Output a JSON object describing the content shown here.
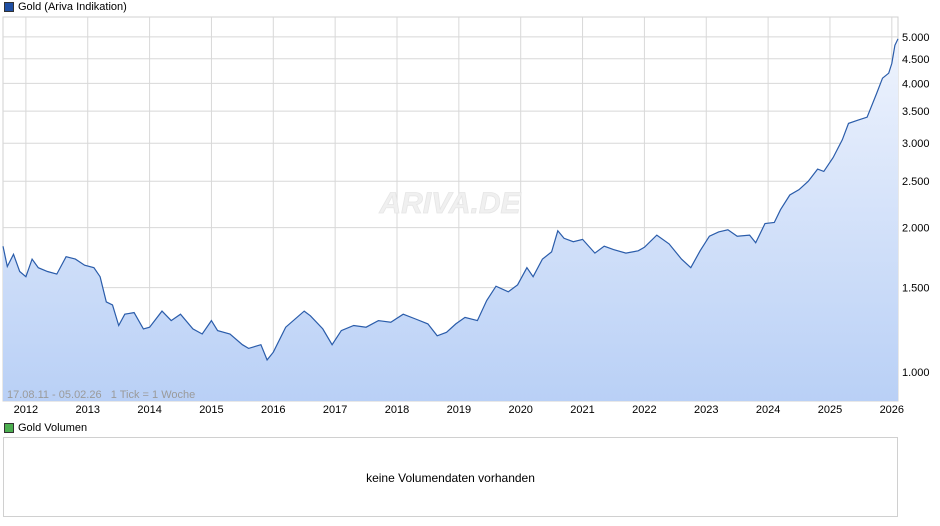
{
  "legend": {
    "main_label": "Gold (Ariva Indikation)",
    "main_color": "#1f4fa3",
    "volume_label": "Gold Volumen",
    "volume_color": "#4caf50"
  },
  "watermark": "ARIVA.DE",
  "info": "17.08.11 - 05.02.26   1 Tick = 1 Woche",
  "volume": {
    "message": "keine Volumendaten vorhanden"
  },
  "colors": {
    "line": "#2a5caa",
    "fill_top": "#eef3fd",
    "fill_bottom": "#b9d0f6",
    "grid": "#d8d8d8"
  },
  "chart_data": {
    "type": "area",
    "yscale": "log",
    "ylim": [
      870,
      5500
    ],
    "xlim": [
      2011.63,
      2026.1
    ],
    "x_ticks": [
      "2012",
      "2013",
      "2014",
      "2015",
      "2016",
      "2017",
      "2018",
      "2019",
      "2020",
      "2021",
      "2022",
      "2023",
      "2024",
      "2025",
      "2026"
    ],
    "y_ticks": [
      {
        "value": 1000,
        "label": "1.000"
      },
      {
        "value": 1500,
        "label": "1.500"
      },
      {
        "value": 2000,
        "label": "2.000"
      },
      {
        "value": 2500,
        "label": "2.500"
      },
      {
        "value": 3000,
        "label": "3.000"
      },
      {
        "value": 3500,
        "label": "3.500"
      },
      {
        "value": 4000,
        "label": "4.000"
      },
      {
        "value": 4500,
        "label": "4.500"
      },
      {
        "value": 5000,
        "label": "5.000"
      }
    ],
    "series": [
      {
        "x": [
          2011.63,
          2011.7,
          2011.8,
          2011.9,
          2012.0,
          2012.1,
          2012.2,
          2012.35,
          2012.5,
          2012.65,
          2012.8,
          2012.95,
          2013.1,
          2013.2,
          2013.3,
          2013.4,
          2013.5,
          2013.6,
          2013.75,
          2013.9,
          2014.0,
          2014.2,
          2014.35,
          2014.5,
          2014.7,
          2014.85,
          2015.0,
          2015.1,
          2015.3,
          2015.5,
          2015.6,
          2015.8,
          2015.9,
          2016.0,
          2016.2,
          2016.5,
          2016.6,
          2016.8,
          2016.95,
          2017.1,
          2017.3,
          2017.5,
          2017.7,
          2017.9,
          2018.1,
          2018.3,
          2018.5,
          2018.65,
          2018.8,
          2018.95,
          2019.1,
          2019.3,
          2019.45,
          2019.6,
          2019.8,
          2019.95,
          2020.1,
          2020.2,
          2020.35,
          2020.5,
          2020.6,
          2020.7,
          2020.85,
          2021.0,
          2021.2,
          2021.35,
          2021.5,
          2021.7,
          2021.9,
          2022.0,
          2022.2,
          2022.4,
          2022.6,
          2022.75,
          2022.9,
          2023.05,
          2023.2,
          2023.35,
          2023.5,
          2023.7,
          2023.8,
          2023.95,
          2024.1,
          2024.2,
          2024.35,
          2024.5,
          2024.65,
          2024.8,
          2024.9,
          2025.05,
          2025.2,
          2025.3,
          2025.45,
          2025.6,
          2025.75,
          2025.85,
          2025.95,
          2026.0,
          2026.05,
          2026.1
        ],
        "y": [
          1830,
          1660,
          1760,
          1620,
          1580,
          1720,
          1650,
          1620,
          1600,
          1740,
          1720,
          1670,
          1650,
          1580,
          1400,
          1380,
          1250,
          1320,
          1330,
          1230,
          1240,
          1340,
          1280,
          1320,
          1230,
          1200,
          1280,
          1220,
          1200,
          1140,
          1120,
          1140,
          1060,
          1100,
          1240,
          1340,
          1310,
          1230,
          1140,
          1220,
          1250,
          1240,
          1280,
          1270,
          1320,
          1290,
          1260,
          1190,
          1210,
          1260,
          1300,
          1280,
          1410,
          1510,
          1470,
          1520,
          1650,
          1580,
          1720,
          1780,
          1970,
          1900,
          1870,
          1890,
          1770,
          1830,
          1800,
          1770,
          1790,
          1820,
          1930,
          1850,
          1720,
          1650,
          1790,
          1920,
          1960,
          1980,
          1920,
          1930,
          1860,
          2040,
          2050,
          2180,
          2340,
          2400,
          2500,
          2650,
          2620,
          2800,
          3050,
          3300,
          3350,
          3400,
          3800,
          4100,
          4200,
          4400,
          4800,
          4950
        ]
      }
    ]
  }
}
